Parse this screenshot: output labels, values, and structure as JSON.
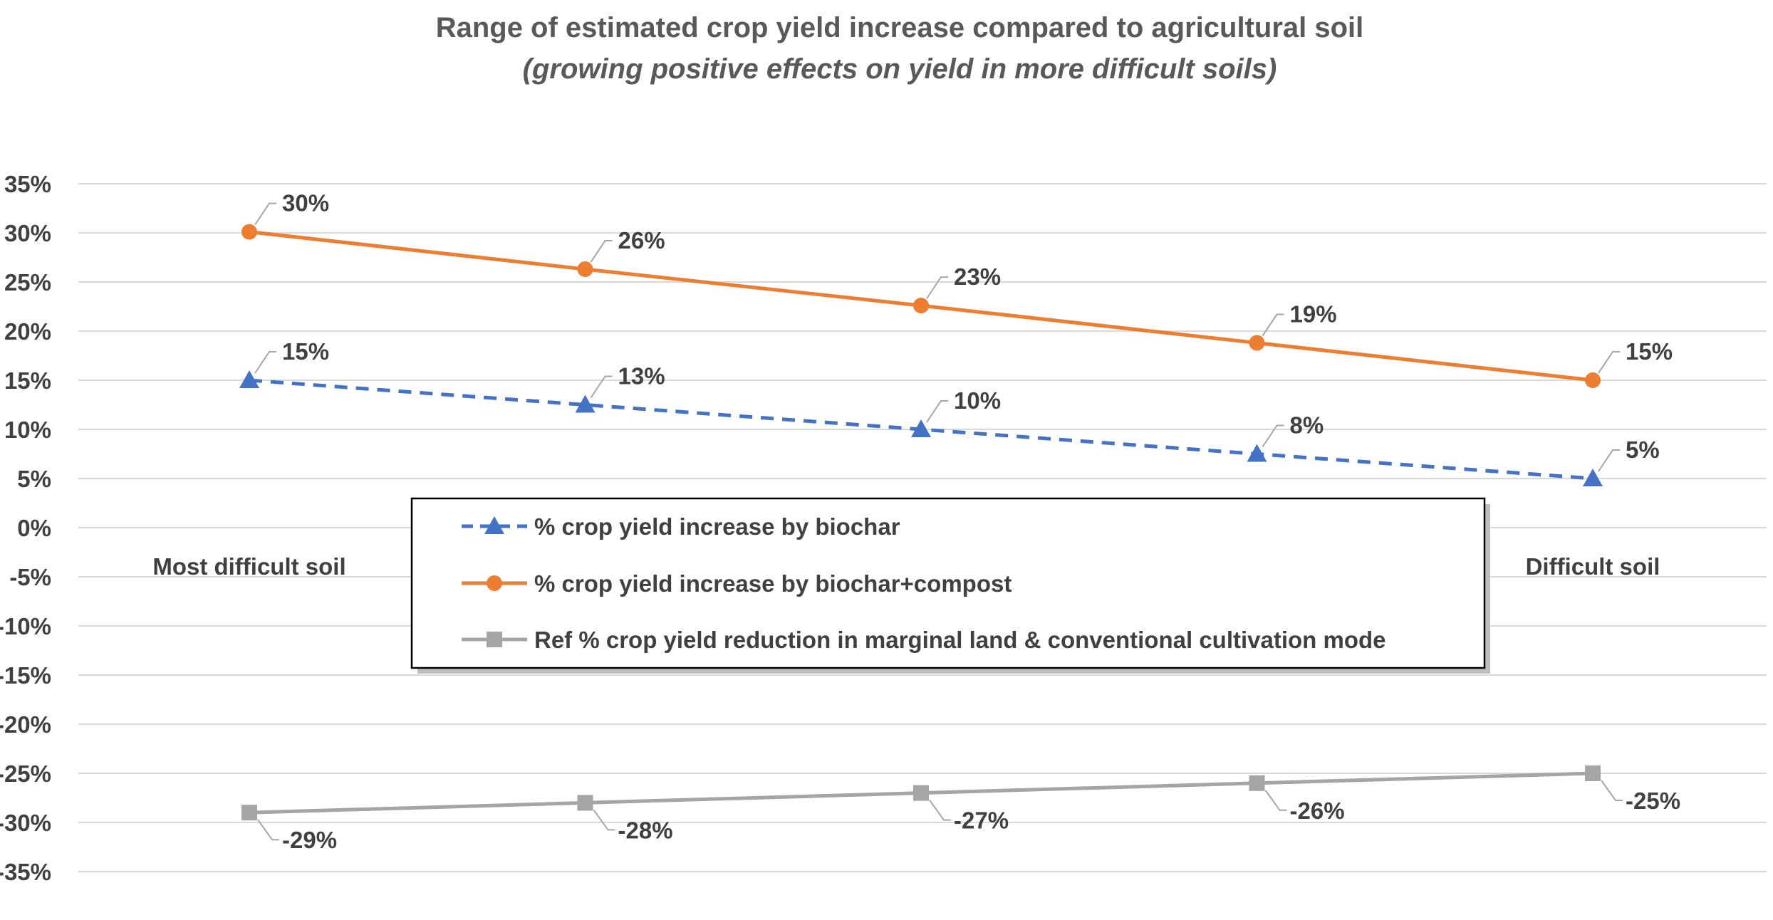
{
  "chart_data": {
    "type": "line",
    "title": "Range of estimated crop yield increase compared to agricultural soil",
    "subtitle": "(growing positive effects on yield in more difficult soils)",
    "category_labels": {
      "first": "Most difficult soil",
      "last": "Difficult soil"
    },
    "x": [
      1,
      2,
      3,
      4,
      5
    ],
    "ylim": [
      -35,
      35
    ],
    "ytick_step": 5,
    "ytick_format": "%",
    "grid": true,
    "legend_position": "center",
    "series": [
      {
        "name": "% crop yield increase by biochar",
        "values": [
          15,
          12.5,
          10,
          7.5,
          5
        ],
        "labels": [
          "15%",
          "13%",
          "10%",
          "8%",
          "5%"
        ],
        "color": "#4472c4",
        "line_style": "dashed",
        "marker": "triangle"
      },
      {
        "name": "% crop yield increase by biochar+compost",
        "values": [
          30.1,
          26.3,
          22.6,
          18.8,
          15
        ],
        "labels": [
          "30%",
          "26%",
          "23%",
          "19%",
          "15%"
        ],
        "color": "#ed7d31",
        "line_style": "solid",
        "marker": "circle"
      },
      {
        "name": "Ref % crop yield reduction in marginal land & conventional cultivation mode",
        "values": [
          -29,
          -28,
          -27,
          -26,
          -25
        ],
        "labels": [
          "-29%",
          "-28%",
          "-27%",
          "-26%",
          "-25%"
        ],
        "color": "#a5a5a5",
        "line_style": "solid",
        "marker": "square"
      }
    ]
  }
}
